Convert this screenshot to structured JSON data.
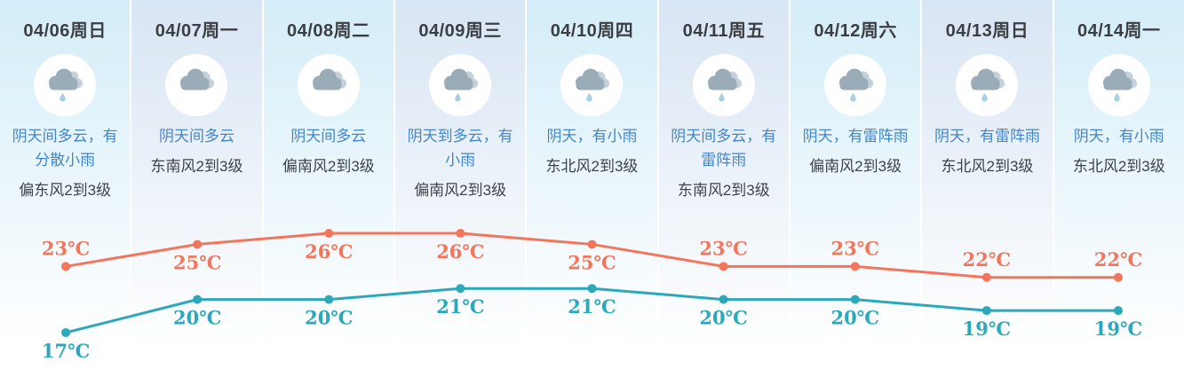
{
  "colors": {
    "odd_col_bg": "#d4edf8",
    "even_col_bg": "#d8e5f4",
    "date_text": "#3b3e42",
    "desc_text": "#4386c9",
    "wind_text": "#3f4347",
    "cloud_front": "#9aacb8",
    "cloud_back": "#c5d1da",
    "rain_drop": "#a9cfe4",
    "high_line": "#f3765c",
    "low_line": "#2ba8b9"
  },
  "days": [
    {
      "date": "04/06周日",
      "icon": "cloud-rain-icon",
      "has_rain": true,
      "desc": "阴天间多云，有分散小雨",
      "wind": "偏东风2到3级"
    },
    {
      "date": "04/07周一",
      "icon": "cloud-icon",
      "has_rain": false,
      "desc": "阴天间多云",
      "wind": "东南风2到3级"
    },
    {
      "date": "04/08周二",
      "icon": "cloud-icon",
      "has_rain": false,
      "desc": "阴天间多云",
      "wind": "偏南风2到3级"
    },
    {
      "date": "04/09周三",
      "icon": "cloud-rain-icon",
      "has_rain": true,
      "desc": "阴天到多云，有小雨",
      "wind": "偏南风2到3级"
    },
    {
      "date": "04/10周四",
      "icon": "cloud-rain-icon",
      "has_rain": true,
      "desc": "阴天，有小雨",
      "wind": "东北风2到3级"
    },
    {
      "date": "04/11周五",
      "icon": "cloud-rain-icon",
      "has_rain": true,
      "desc": "阴天间多云，有雷阵雨",
      "wind": "东南风2到3级"
    },
    {
      "date": "04/12周六",
      "icon": "cloud-rain-icon",
      "has_rain": true,
      "desc": "阴天，有雷阵雨",
      "wind": "偏南风2到3级"
    },
    {
      "date": "04/13周日",
      "icon": "cloud-rain-icon",
      "has_rain": true,
      "desc": "阴天，有雷阵雨",
      "wind": "东北风2到3级"
    },
    {
      "date": "04/14周一",
      "icon": "cloud-rain-icon",
      "has_rain": true,
      "desc": "阴天，有小雨",
      "wind": "东北风2到3级"
    }
  ],
  "chart_data": {
    "type": "line",
    "unit": "℃",
    "categories": [
      "04/06周日",
      "04/07周一",
      "04/08周二",
      "04/09周三",
      "04/10周四",
      "04/11周五",
      "04/12周六",
      "04/13周日",
      "04/14周一"
    ],
    "series": [
      {
        "name": "high",
        "color": "#f3765c",
        "values": [
          23,
          25,
          26,
          26,
          25,
          23,
          23,
          22,
          22
        ],
        "label_side": [
          "above",
          "below",
          "below",
          "below",
          "below",
          "above",
          "above",
          "above",
          "above"
        ]
      },
      {
        "name": "low",
        "color": "#2ba8b9",
        "values": [
          17,
          20,
          20,
          21,
          21,
          20,
          20,
          19,
          19
        ],
        "label_side": [
          "below",
          "below",
          "below",
          "below",
          "below",
          "below",
          "below",
          "below",
          "below"
        ]
      }
    ],
    "ylim": [
      17,
      26
    ],
    "grid": false,
    "legend": "none"
  }
}
